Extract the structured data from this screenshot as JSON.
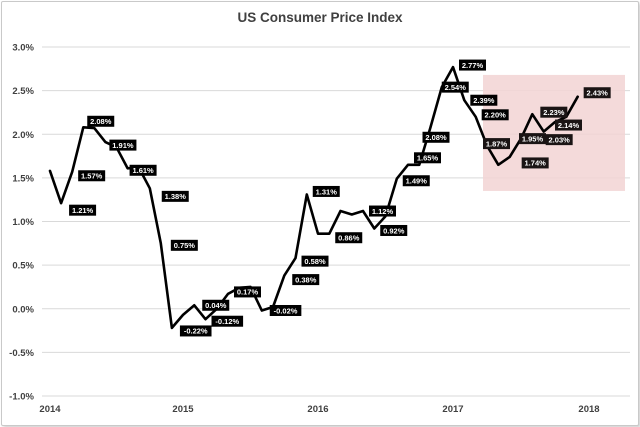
{
  "chart_data": {
    "type": "line",
    "title": "US Consumer Price Index",
    "xlabel": "",
    "ylabel": "",
    "ylim": [
      -1.0,
      3.0
    ],
    "yticks": [
      "3.0%",
      "2.5%",
      "2.0%",
      "1.5%",
      "1.0%",
      "0.5%",
      "0.0%",
      "-0.5%",
      "-1.0%"
    ],
    "xticks": [
      "2014",
      "2015",
      "2016",
      "2017",
      "2018"
    ],
    "grid": "horizontal",
    "series": [
      {
        "color": "#000000",
        "points": [
          {
            "x": "2014-01",
            "y": 1.58
          },
          {
            "x": "2014-02",
            "y": 1.21,
            "label": "1.21%"
          },
          {
            "x": "2014-03",
            "y": 1.57,
            "label": "1.57%"
          },
          {
            "x": "2014-04",
            "y": 2.08,
            "label": "2.08%"
          },
          {
            "x": "2014-05",
            "y": 2.07
          },
          {
            "x": "2014-06",
            "y": 1.91,
            "label": "1.91%"
          },
          {
            "x": "2014-07",
            "y": 1.85
          },
          {
            "x": "2014-08",
            "y": 1.61,
            "label": "1.61%"
          },
          {
            "x": "2014-09",
            "y": 1.62
          },
          {
            "x": "2014-10",
            "y": 1.38,
            "label": "1.38%"
          },
          {
            "x": "2014-11",
            "y": 0.75,
            "label": "0.75%"
          },
          {
            "x": "2014-12",
            "y": -0.22,
            "label": "-0.22%"
          },
          {
            "x": "2015-01",
            "y": -0.07
          },
          {
            "x": "2015-02",
            "y": 0.04,
            "label": "0.04%"
          },
          {
            "x": "2015-03",
            "y": -0.12,
            "label": "-0.12%"
          },
          {
            "x": "2015-04",
            "y": 0.0
          },
          {
            "x": "2015-05",
            "y": 0.17,
            "label": "0.17%"
          },
          {
            "x": "2015-06",
            "y": 0.24
          },
          {
            "x": "2015-07",
            "y": 0.25
          },
          {
            "x": "2015-08",
            "y": -0.02,
            "label": "-0.02%"
          },
          {
            "x": "2015-09",
            "y": 0.02
          },
          {
            "x": "2015-10",
            "y": 0.38,
            "label": "0.38%"
          },
          {
            "x": "2015-11",
            "y": 0.58,
            "label": "0.58%"
          },
          {
            "x": "2015-12",
            "y": 1.31,
            "label": "1.31%"
          },
          {
            "x": "2016-01",
            "y": 0.86
          },
          {
            "x": "2016-02",
            "y": 0.86,
            "label": "0.86%"
          },
          {
            "x": "2016-03",
            "y": 1.12
          },
          {
            "x": "2016-04",
            "y": 1.08
          },
          {
            "x": "2016-05",
            "y": 1.12,
            "label": "1.12%"
          },
          {
            "x": "2016-06",
            "y": 0.92,
            "label": "0.92%"
          },
          {
            "x": "2016-07",
            "y": 1.06
          },
          {
            "x": "2016-08",
            "y": 1.49,
            "label": "1.49%"
          },
          {
            "x": "2016-09",
            "y": 1.65,
            "label": "1.65%"
          },
          {
            "x": "2016-10",
            "y": 1.65
          },
          {
            "x": "2016-11",
            "y": 2.08,
            "label": "2.08%"
          },
          {
            "x": "2016-12",
            "y": 2.54,
            "label": "2.54%"
          },
          {
            "x": "2017-01",
            "y": 2.77,
            "label": "2.77%"
          },
          {
            "x": "2017-02",
            "y": 2.39,
            "label": "2.39%"
          },
          {
            "x": "2017-03",
            "y": 2.2,
            "label": "2.20%"
          },
          {
            "x": "2017-04",
            "y": 1.87,
            "label": "1.87%"
          },
          {
            "x": "2017-05",
            "y": 1.65
          },
          {
            "x": "2017-06",
            "y": 1.74,
            "label": "1.74%"
          },
          {
            "x": "2017-07",
            "y": 1.95,
            "label": "1.95%"
          },
          {
            "x": "2017-08",
            "y": 2.23,
            "label": "2.23%"
          },
          {
            "x": "2017-09",
            "y": 2.03,
            "label": "2.03%"
          },
          {
            "x": "2017-10",
            "y": 2.14,
            "label": "2.14%"
          },
          {
            "x": "2017-11",
            "y": 2.2
          },
          {
            "x": "2017-12",
            "y": 2.43,
            "label": "2.43%"
          }
        ]
      }
    ],
    "highlight_region": {
      "x_from": "2017-04",
      "x_to": "2018-04",
      "y_from": 1.35,
      "y_to": 2.68,
      "color": "#f2d4d4"
    }
  }
}
